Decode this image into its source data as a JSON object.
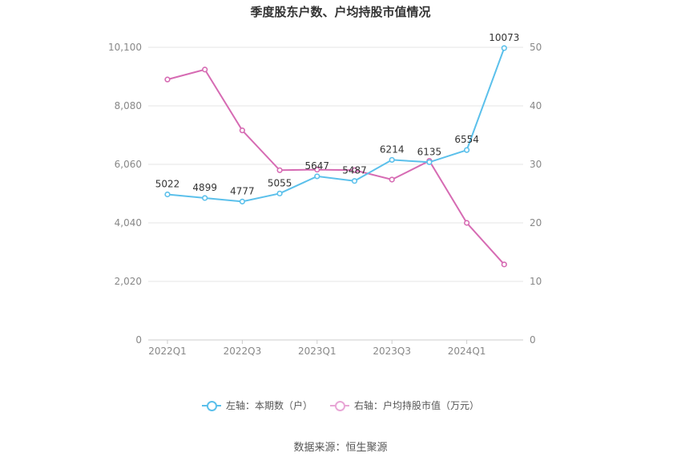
{
  "title": "季度股东户数、户均持股市值情况",
  "source": "数据来源：恒生聚源",
  "legend": [
    {
      "label": "左轴：本期数（户）",
      "color": "#5bc0eb"
    },
    {
      "label": "右轴：户均持股市值（万元）",
      "color": "#e38ecb"
    }
  ],
  "chart_data": {
    "type": "line",
    "categories": [
      "2022Q1",
      "2022Q2",
      "2022Q3",
      "2022Q4",
      "2023Q1",
      "2023Q2",
      "2023Q3",
      "2023Q4",
      "2024Q1",
      "2024Q2"
    ],
    "x_tick_labels": [
      "2022Q1",
      "",
      "2022Q3",
      "",
      "2023Q1",
      "",
      "2023Q3",
      "",
      "2024Q1",
      ""
    ],
    "left_axis": {
      "min": 0,
      "max": 10100,
      "ticks": [
        0,
        2020,
        4040,
        6060,
        8080,
        10100
      ],
      "tick_labels": [
        "0",
        "2,020",
        "4,040",
        "6,060",
        "8,080",
        "10,100"
      ]
    },
    "right_axis": {
      "min": 0,
      "max": 50,
      "ticks": [
        0,
        10,
        20,
        30,
        40,
        50
      ],
      "tick_labels": [
        "0",
        "10",
        "20",
        "30",
        "40",
        "50"
      ]
    },
    "series": [
      {
        "name": "左轴：本期数（户）",
        "axis": "left",
        "color": "#5bc0eb",
        "values": [
          5022,
          4899,
          4777,
          5055,
          5647,
          5487,
          6214,
          6135,
          6554,
          10073
        ],
        "data_labels": [
          "5022",
          "4899",
          "4777",
          "5055",
          "5647",
          "5487",
          "6214",
          "6135",
          "6554",
          "10073"
        ]
      },
      {
        "name": "右轴：户均持股市值（万元）",
        "axis": "right",
        "color": "#d66bb3",
        "values": [
          44.5,
          46.2,
          35.8,
          29.0,
          29.1,
          29.0,
          27.4,
          30.6,
          20.0,
          12.9
        ]
      }
    ],
    "grid": true
  }
}
